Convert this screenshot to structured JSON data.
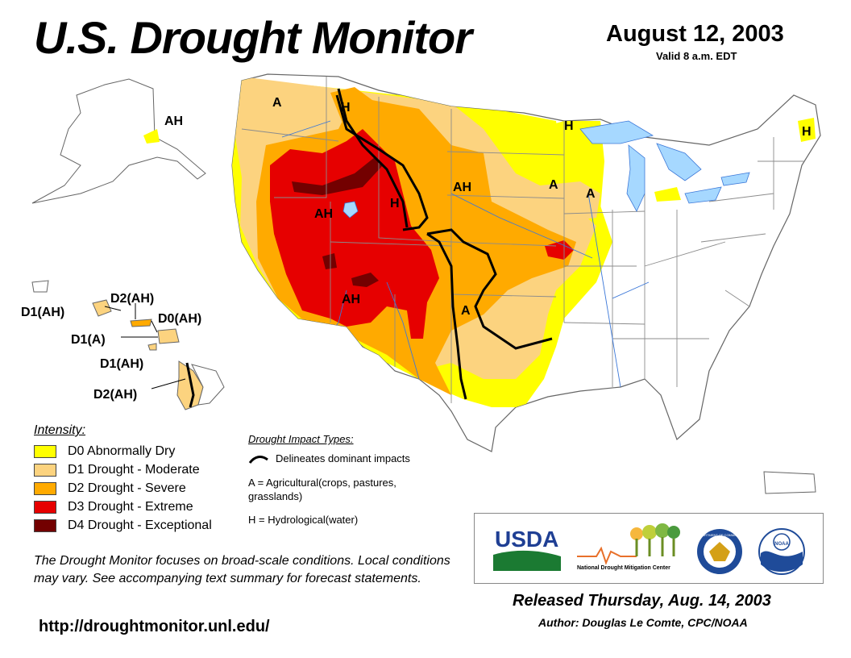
{
  "header": {
    "title": "U.S. Drought Monitor",
    "date": "August 12, 2003",
    "valid": "Valid 8 a.m. EDT"
  },
  "colors": {
    "d0": "#ffff00",
    "d1": "#fcd37f",
    "d2": "#ffaa00",
    "d3": "#e60000",
    "d4": "#730000",
    "water": "#a6d8ff",
    "border": "#8c8c8c",
    "river": "#3c78d8"
  },
  "map_labels": {
    "nw_a": "A",
    "north_h": "H",
    "north_plains_ah": "AH",
    "basin_ah": "AH",
    "rockies_h": "H",
    "southwest_ah": "AH",
    "south_plains_a": "A",
    "upper_midwest_h": "H",
    "midwest_a1": "A",
    "midwest_a2": "A",
    "maine_h": "H",
    "alaska_ah": "AH"
  },
  "hawaii_labels": {
    "d2ah_top": "D2(AH)",
    "d1ah_left": "D1(AH)",
    "d0ah": "D0(AH)",
    "d1a": "D1(A)",
    "d1ah_bottom": "D1(AH)",
    "d2ah_bottom": "D2(AH)"
  },
  "legend": {
    "title": "Intensity:",
    "items": [
      {
        "color": "#ffff00",
        "label": "D0 Abnormally Dry"
      },
      {
        "color": "#fcd37f",
        "label": "D1 Drought - Moderate"
      },
      {
        "color": "#ffaa00",
        "label": "D2 Drought - Severe"
      },
      {
        "color": "#e60000",
        "label": "D3 Drought - Extreme"
      },
      {
        "color": "#730000",
        "label": "D4 Drought - Exceptional"
      }
    ]
  },
  "impact_types": {
    "title": "Drought Impact Types:",
    "line": "Delineates dominant impacts",
    "a": "A = Agricultural(crops, pastures, grasslands)",
    "h": "H = Hydrological(water)"
  },
  "note": "The Drought Monitor focuses on broad-scale conditions. Local conditions may vary. See accompanying text summary for forecast statements.",
  "url": "http://droughtmonitor.unl.edu/",
  "footer": {
    "released": "Released Thursday, Aug. 14, 2003",
    "author": "Author: Douglas Le Comte, CPC/NOAA"
  },
  "logos": {
    "usda": "USDA",
    "ndmc": "National   Drought Mitigation Center",
    "doc": "DEPARTMENT OF COMMERCE",
    "noaa": "NOAA"
  }
}
